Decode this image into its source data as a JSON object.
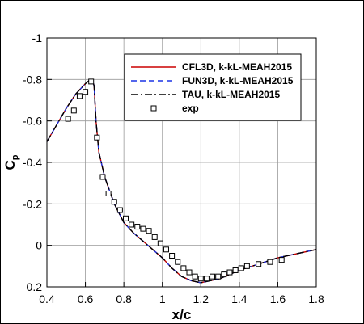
{
  "chart_data": {
    "type": "line",
    "xlabel": "x/c",
    "ylabel": "C",
    "ylabel_sub": "p",
    "xlim": [
      0.4,
      1.8
    ],
    "ylim": [
      -1.0,
      0.2
    ],
    "y_inverted": true,
    "grid": true,
    "legend_placement": "top-right",
    "x_ticks": [
      "0.4",
      "0.6",
      "0.8",
      "1",
      "1.2",
      "1.4",
      "1.6",
      "1.8"
    ],
    "y_ticks": [
      "-1",
      "-0.8",
      "-0.6",
      "-0.4",
      "-0.2",
      "0",
      "0.2"
    ],
    "series": [
      {
        "name": "CFL3D, k-kL-MEAH2015",
        "color": "#cc0000",
        "style": "solid",
        "x": [
          0.4,
          0.45,
          0.5,
          0.55,
          0.6,
          0.62,
          0.635,
          0.645,
          0.655,
          0.67,
          0.7,
          0.75,
          0.8,
          0.85,
          0.9,
          0.95,
          1.0,
          1.05,
          1.1,
          1.15,
          1.2,
          1.3,
          1.4,
          1.5,
          1.6,
          1.7,
          1.8
        ],
        "y": [
          -0.5,
          -0.58,
          -0.66,
          -0.73,
          -0.78,
          -0.795,
          -0.8,
          -0.77,
          -0.6,
          -0.45,
          -0.33,
          -0.2,
          -0.11,
          -0.06,
          -0.02,
          0.02,
          0.06,
          0.11,
          0.15,
          0.17,
          0.18,
          0.16,
          0.12,
          0.09,
          0.06,
          0.04,
          0.02
        ]
      },
      {
        "name": "FUN3D, k-kL-MEAH2015",
        "color": "#1a33e6",
        "style": "dashed",
        "x": [
          0.4,
          0.45,
          0.5,
          0.55,
          0.6,
          0.62,
          0.635,
          0.645,
          0.655,
          0.67,
          0.7,
          0.75,
          0.8,
          0.85,
          0.9,
          0.95,
          1.0,
          1.05,
          1.1,
          1.15,
          1.2,
          1.3,
          1.4,
          1.5,
          1.6,
          1.7,
          1.8
        ],
        "y": [
          -0.5,
          -0.58,
          -0.66,
          -0.73,
          -0.78,
          -0.795,
          -0.8,
          -0.77,
          -0.6,
          -0.45,
          -0.33,
          -0.2,
          -0.11,
          -0.06,
          -0.02,
          0.02,
          0.06,
          0.11,
          0.15,
          0.17,
          0.18,
          0.16,
          0.12,
          0.09,
          0.06,
          0.04,
          0.02
        ]
      },
      {
        "name": "TAU, k-kL-MEAH2015",
        "color": "#000000",
        "style": "dashdot",
        "x": [
          0.4,
          0.45,
          0.5,
          0.55,
          0.6,
          0.62,
          0.635,
          0.645,
          0.655,
          0.67,
          0.7,
          0.75,
          0.8,
          0.85,
          0.9,
          0.95,
          1.0,
          1.05,
          1.1,
          1.15,
          1.2,
          1.3,
          1.4,
          1.5,
          1.6,
          1.7,
          1.8
        ],
        "y": [
          -0.5,
          -0.58,
          -0.66,
          -0.73,
          -0.78,
          -0.795,
          -0.8,
          -0.77,
          -0.6,
          -0.45,
          -0.33,
          -0.2,
          -0.11,
          -0.06,
          -0.02,
          0.02,
          0.06,
          0.11,
          0.15,
          0.17,
          0.18,
          0.16,
          0.12,
          0.09,
          0.06,
          0.04,
          0.02
        ]
      }
    ],
    "scatter": {
      "name": "exp",
      "color": "#000000",
      "marker": "square",
      "x": [
        0.51,
        0.54,
        0.57,
        0.6,
        0.63,
        0.66,
        0.69,
        0.72,
        0.75,
        0.78,
        0.81,
        0.84,
        0.87,
        0.9,
        0.93,
        0.96,
        0.99,
        1.02,
        1.05,
        1.08,
        1.11,
        1.14,
        1.17,
        1.2,
        1.23,
        1.26,
        1.29,
        1.32,
        1.35,
        1.38,
        1.41,
        1.44,
        1.5,
        1.56,
        1.62
      ],
      "y": [
        -0.61,
        -0.65,
        -0.72,
        -0.74,
        -0.79,
        -0.52,
        -0.33,
        -0.25,
        -0.21,
        -0.17,
        -0.13,
        -0.1,
        -0.09,
        -0.08,
        -0.07,
        -0.04,
        -0.01,
        0.02,
        0.05,
        0.08,
        0.11,
        0.13,
        0.15,
        0.16,
        0.16,
        0.15,
        0.15,
        0.14,
        0.13,
        0.12,
        0.11,
        0.1,
        0.09,
        0.08,
        0.07
      ]
    }
  }
}
